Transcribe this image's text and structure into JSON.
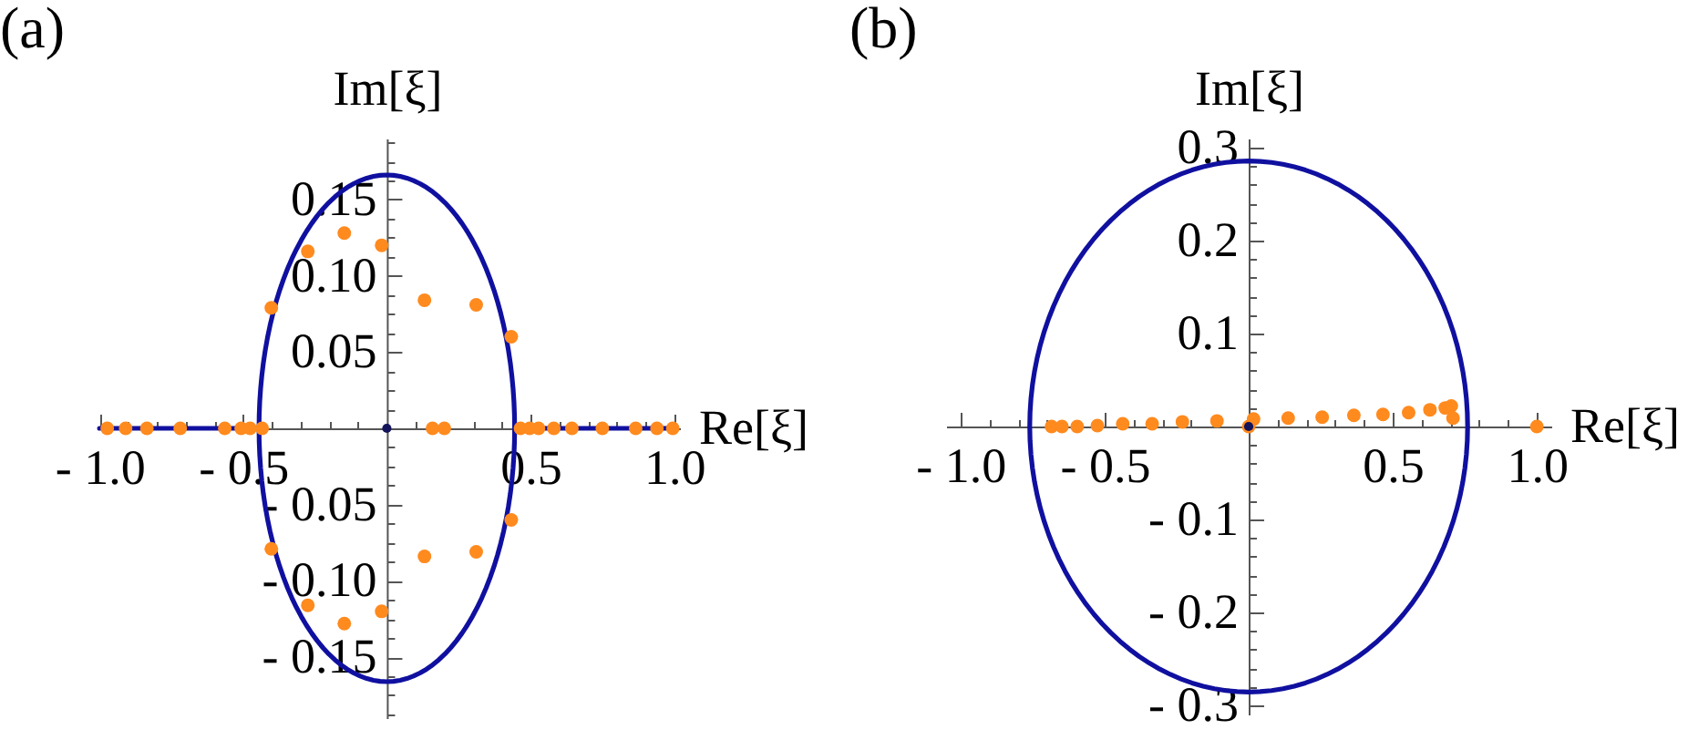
{
  "chart_data": [
    {
      "type": "scatter",
      "title": "(a)",
      "xlabel": "Re[ξ]",
      "ylabel": "Im[ξ]",
      "xlim": [
        -1.01,
        1.02
      ],
      "ylim": [
        -0.19,
        0.19
      ],
      "xticks": [
        {
          "value": -1,
          "label": "- 1.0"
        },
        {
          "value": -0.9,
          "label": null
        },
        {
          "value": -0.8,
          "label": null
        },
        {
          "value": -0.7,
          "label": null
        },
        {
          "value": -0.6,
          "label": null
        },
        {
          "value": -0.5,
          "label": "- 0.5"
        },
        {
          "value": -0.4,
          "label": null
        },
        {
          "value": -0.3,
          "label": null
        },
        {
          "value": -0.2,
          "label": null
        },
        {
          "value": -0.1,
          "label": null
        },
        {
          "value": 0.1,
          "label": null
        },
        {
          "value": 0.2,
          "label": null
        },
        {
          "value": 0.3,
          "label": null
        },
        {
          "value": 0.4,
          "label": null
        },
        0.5,
        {
          "value": 0.6,
          "label": null
        },
        {
          "value": 0.7,
          "label": null
        },
        {
          "value": 0.8,
          "label": null
        },
        {
          "value": 0.9,
          "label": null
        },
        {
          "value": 1,
          "label": "1.0"
        }
      ],
      "yticks": [
        {
          "value": -0.1875,
          "label": null
        },
        {
          "value": -0.175,
          "label": null
        },
        {
          "value": -0.1625,
          "label": null
        },
        {
          "value": -0.15,
          "label": "- 0.15"
        },
        {
          "value": -0.1375,
          "label": null
        },
        {
          "value": -0.125,
          "label": null
        },
        {
          "value": -0.1125,
          "label": null
        },
        {
          "value": -0.1,
          "label": "- 0.10"
        },
        {
          "value": -0.0875,
          "label": null
        },
        {
          "value": -0.075,
          "label": null
        },
        {
          "value": -0.0625,
          "label": null
        },
        {
          "value": -0.05,
          "label": "- 0.05"
        },
        {
          "value": -0.0375,
          "label": null
        },
        {
          "value": -0.025,
          "label": null
        },
        {
          "value": -0.0125,
          "label": null
        },
        {
          "value": 0.0125,
          "label": null
        },
        {
          "value": 0.025,
          "label": null
        },
        {
          "value": 0.0375,
          "label": null
        },
        0.05,
        {
          "value": 0.0625,
          "label": null
        },
        {
          "value": 0.075,
          "label": null
        },
        {
          "value": 0.0875,
          "label": null
        },
        {
          "value": 0.1,
          "label": "0.10"
        },
        {
          "value": 0.1125,
          "label": null
        },
        {
          "value": 0.125,
          "label": null
        },
        {
          "value": 0.1375,
          "label": null
        },
        0.15,
        {
          "value": 0.1625,
          "label": null
        },
        {
          "value": 0.175,
          "label": null
        },
        {
          "value": 0.1875,
          "label": null
        }
      ],
      "series": [
        {
          "type": "line",
          "color": "#1010a0",
          "x": [
            -1,
            -0.445
          ],
          "values": [
            0,
            0
          ]
        },
        {
          "type": "line",
          "color": "#1010a0",
          "x": [
            0.445,
            1
          ],
          "values": [
            0,
            0
          ]
        },
        {
          "marker": "circle",
          "color": "#ff8a1e",
          "x": [
            -0.973,
            -0.909,
            -0.835,
            -0.719,
            -0.564,
            -0.507,
            -0.476,
            -0.434,
            0.159,
            0.2,
            0.465,
            0.497,
            0.528,
            0.581,
            0.644,
            0.75,
            0.866,
            0.94,
            0.995,
            -0.402,
            -0.275,
            -0.148,
            -0.018,
            0.131,
            0.311,
            0.433,
            -0.402,
            -0.275,
            -0.148,
            -0.018,
            0.131,
            0.311,
            0.433
          ],
          "values": [
            0,
            0,
            0,
            0,
            0,
            0,
            0,
            0,
            0,
            0,
            0,
            0,
            0,
            0,
            0,
            0,
            0,
            0,
            0,
            0.079,
            0.116,
            0.128,
            0.12,
            0.084,
            0.081,
            0.06,
            -0.079,
            -0.116,
            -0.128,
            -0.12,
            -0.084,
            -0.081,
            -0.06
          ]
        },
        {
          "marker": "circle",
          "color": "#14145a",
          "x": [
            0
          ],
          "values": [
            0
          ]
        }
      ]
    },
    {
      "type": "scatter",
      "title": "(b)",
      "xlabel": "Re[ξ]",
      "ylabel": "Im[ξ]",
      "xlim": [
        -1.05,
        1.05
      ],
      "ylim": [
        -0.31,
        0.31
      ],
      "xticks": [
        {
          "value": -1,
          "label": "- 1.0"
        },
        {
          "value": -0.9,
          "label": null
        },
        {
          "value": -0.8,
          "label": null
        },
        {
          "value": -0.7,
          "label": null
        },
        {
          "value": -0.6,
          "label": null
        },
        {
          "value": -0.5,
          "label": "- 0.5"
        },
        {
          "value": -0.4,
          "label": null
        },
        {
          "value": -0.3,
          "label": null
        },
        {
          "value": -0.2,
          "label": null
        },
        {
          "value": -0.1,
          "label": null
        },
        {
          "value": 0.1,
          "label": null
        },
        {
          "value": 0.2,
          "label": null
        },
        {
          "value": 0.3,
          "label": null
        },
        {
          "value": 0.4,
          "label": null
        },
        0.5,
        {
          "value": 0.6,
          "label": null
        },
        {
          "value": 0.7,
          "label": null
        },
        {
          "value": 0.8,
          "label": null
        },
        {
          "value": 0.9,
          "label": null
        },
        {
          "value": 1,
          "label": "1.0"
        }
      ],
      "yticks": [
        {
          "value": -0.3,
          "label": "- 0.3"
        },
        {
          "value": -0.28,
          "label": null
        },
        {
          "value": -0.26,
          "label": null
        },
        {
          "value": -0.24,
          "label": null
        },
        {
          "value": -0.22,
          "label": null
        },
        {
          "value": -0.2,
          "label": "- 0.2"
        },
        {
          "value": -0.18,
          "label": null
        },
        {
          "value": -0.16,
          "label": null
        },
        {
          "value": -0.14,
          "label": null
        },
        {
          "value": -0.12,
          "label": null
        },
        {
          "value": -0.1,
          "label": "- 0.1"
        },
        {
          "value": -0.08,
          "label": null
        },
        {
          "value": -0.06,
          "label": null
        },
        {
          "value": -0.04,
          "label": null
        },
        {
          "value": -0.02,
          "label": null
        },
        {
          "value": 0.02,
          "label": null
        },
        {
          "value": 0.04,
          "label": null
        },
        {
          "value": 0.06,
          "label": null
        },
        {
          "value": 0.08,
          "label": null
        },
        0.1,
        {
          "value": 0.12,
          "label": null
        },
        {
          "value": 0.14,
          "label": null
        },
        {
          "value": 0.16,
          "label": null
        },
        {
          "value": 0.18,
          "label": null
        },
        0.2,
        {
          "value": 0.22,
          "label": null
        },
        {
          "value": 0.24,
          "label": null
        },
        {
          "value": 0.26,
          "label": null
        },
        {
          "value": 0.28,
          "label": null
        },
        0.3
      ],
      "series": [
        {
          "marker": "circle",
          "color": "#ff8a1e",
          "x": [
            -0.684,
            -0.648,
            -0.595,
            -0.525,
            -0.437,
            -0.335,
            -0.23,
            -0.11,
            0,
            0.017,
            0.137,
            0.255,
            0.365,
            0.466,
            0.555,
            0.629,
            0.682,
            0.703,
            0.709,
            1
          ],
          "values": [
            0,
            0,
            0,
            0.001,
            0.003,
            0.003,
            0.005,
            0.006,
            0,
            0.008,
            0.009,
            0.01,
            0.012,
            0.013,
            0.015,
            0.018,
            0.02,
            0.022,
            0.009,
            0
          ]
        },
        {
          "marker": "circle",
          "color": "#14145a",
          "x": [
            0
          ],
          "values": [
            0
          ]
        }
      ]
    }
  ]
}
